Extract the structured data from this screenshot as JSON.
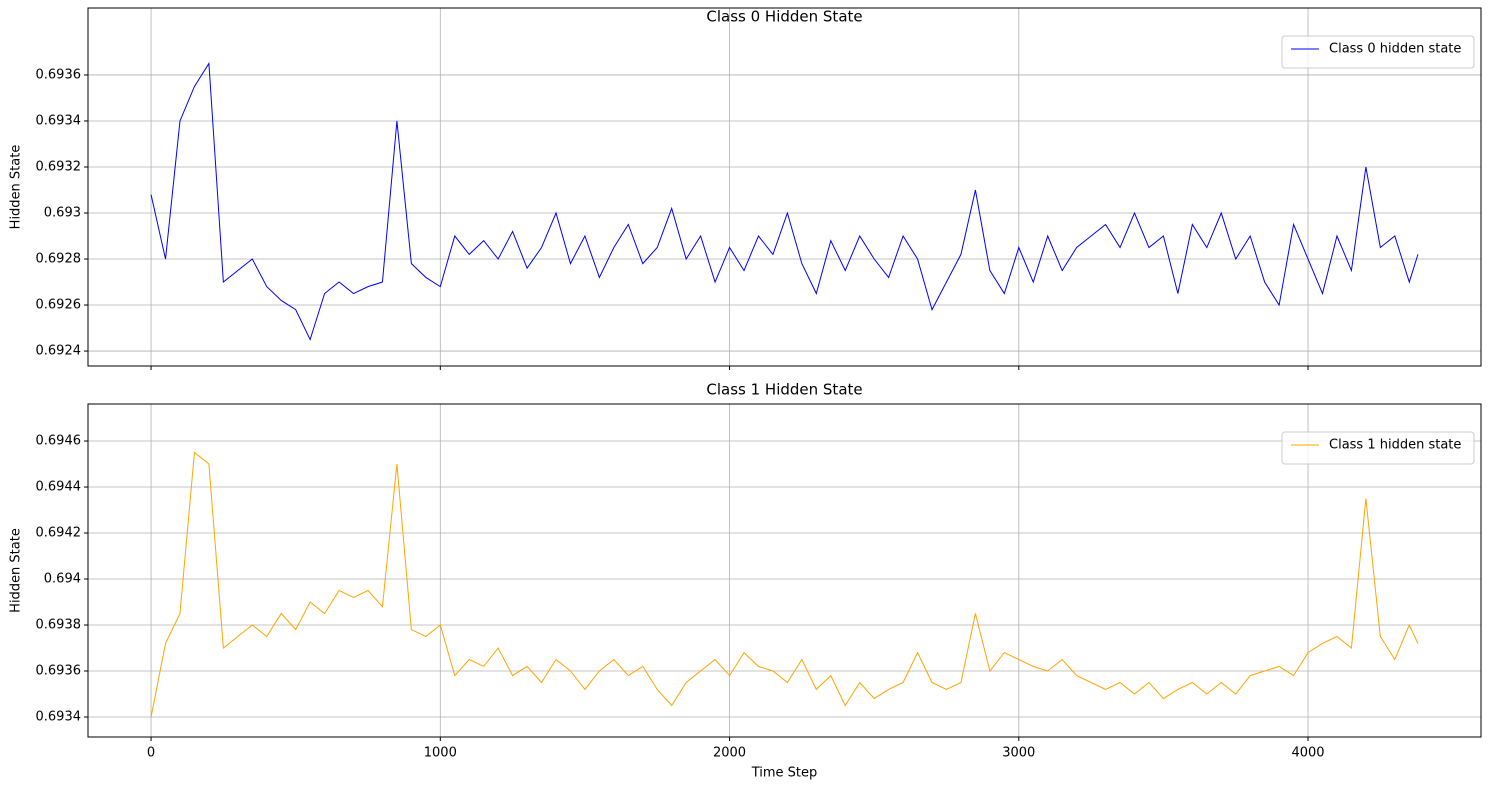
{
  "chart_data": [
    {
      "type": "line",
      "title": "Class 0 Hidden State",
      "ylabel": "Hidden State",
      "x": [
        0,
        50,
        100,
        150,
        200,
        250,
        300,
        350,
        400,
        450,
        500,
        550,
        600,
        650,
        700,
        750,
        800,
        850,
        900,
        950,
        1000,
        1050,
        1100,
        1150,
        1200,
        1250,
        1300,
        1350,
        1400,
        1450,
        1500,
        1550,
        1600,
        1650,
        1700,
        1750,
        1800,
        1850,
        1900,
        1950,
        2000,
        2050,
        2100,
        2150,
        2200,
        2250,
        2300,
        2350,
        2400,
        2450,
        2500,
        2550,
        2600,
        2650,
        2700,
        2750,
        2800,
        2850,
        2900,
        2950,
        3000,
        3050,
        3100,
        3150,
        3200,
        3250,
        3300,
        3350,
        3400,
        3450,
        3500,
        3550,
        3600,
        3650,
        3700,
        3750,
        3800,
        3850,
        3900,
        3950,
        4000,
        4050,
        4100,
        4150,
        4200,
        4250,
        4300,
        4350,
        4380
      ],
      "series": [
        {
          "name": "Class 0 hidden state",
          "color": "#0000ff",
          "values": [
            0.69308,
            0.6928,
            0.6934,
            0.69355,
            0.69365,
            0.6927,
            0.69275,
            0.6928,
            0.69268,
            0.69262,
            0.69258,
            0.69245,
            0.69265,
            0.6927,
            0.69265,
            0.69268,
            0.6927,
            0.6934,
            0.69278,
            0.69272,
            0.69268,
            0.6929,
            0.69282,
            0.69288,
            0.6928,
            0.69292,
            0.69276,
            0.69285,
            0.693,
            0.69278,
            0.6929,
            0.69272,
            0.69285,
            0.69295,
            0.69278,
            0.69285,
            0.69302,
            0.6928,
            0.6929,
            0.6927,
            0.69285,
            0.69275,
            0.6929,
            0.69282,
            0.693,
            0.69278,
            0.69265,
            0.69288,
            0.69275,
            0.6929,
            0.6928,
            0.69272,
            0.6929,
            0.6928,
            0.69258,
            0.6927,
            0.69282,
            0.6931,
            0.69275,
            0.69265,
            0.69285,
            0.6927,
            0.6929,
            0.69275,
            0.69285,
            0.6929,
            0.69295,
            0.69285,
            0.693,
            0.69285,
            0.6929,
            0.69265,
            0.69295,
            0.69285,
            0.693,
            0.6928,
            0.6929,
            0.6927,
            0.6926,
            0.69295,
            0.6928,
            0.69265,
            0.6929,
            0.69275,
            0.6932,
            0.69285,
            0.6929,
            0.6927,
            0.69282
          ]
        }
      ],
      "xlim": [
        -218,
        4598
      ],
      "ylim": [
        0.692335,
        0.693891
      ],
      "xticks": [
        0,
        1000,
        2000,
        3000,
        4000
      ],
      "xticklabels": false,
      "yticks": [
        0.6924,
        0.6926,
        0.6928,
        0.693,
        0.6932,
        0.6934,
        0.6936
      ],
      "grid": true,
      "legend": "upper right"
    },
    {
      "type": "line",
      "title": "Class 1 Hidden State",
      "ylabel": "Hidden State",
      "xlabel": "Time Step",
      "x": [
        0,
        50,
        100,
        150,
        200,
        250,
        300,
        350,
        400,
        450,
        500,
        550,
        600,
        650,
        700,
        750,
        800,
        850,
        900,
        950,
        1000,
        1050,
        1100,
        1150,
        1200,
        1250,
        1300,
        1350,
        1400,
        1450,
        1500,
        1550,
        1600,
        1650,
        1700,
        1750,
        1800,
        1850,
        1900,
        1950,
        2000,
        2050,
        2100,
        2150,
        2200,
        2250,
        2300,
        2350,
        2400,
        2450,
        2500,
        2550,
        2600,
        2650,
        2700,
        2750,
        2800,
        2850,
        2900,
        2950,
        3000,
        3050,
        3100,
        3150,
        3200,
        3250,
        3300,
        3350,
        3400,
        3450,
        3500,
        3550,
        3600,
        3650,
        3700,
        3750,
        3800,
        3850,
        3900,
        3950,
        4000,
        4050,
        4100,
        4150,
        4200,
        4250,
        4300,
        4350,
        4380
      ],
      "series": [
        {
          "name": "Class 1 hidden state",
          "color": "#ffa500",
          "values": [
            0.6934,
            0.69372,
            0.69385,
            0.69455,
            0.6945,
            0.6937,
            0.69375,
            0.6938,
            0.69375,
            0.69385,
            0.69378,
            0.6939,
            0.69385,
            0.69395,
            0.69392,
            0.69395,
            0.69388,
            0.6945,
            0.69378,
            0.69375,
            0.6938,
            0.69358,
            0.69365,
            0.69362,
            0.6937,
            0.69358,
            0.69362,
            0.69355,
            0.69365,
            0.6936,
            0.69352,
            0.6936,
            0.69365,
            0.69358,
            0.69362,
            0.69352,
            0.69345,
            0.69355,
            0.6936,
            0.69365,
            0.69358,
            0.69368,
            0.69362,
            0.6936,
            0.69355,
            0.69365,
            0.69352,
            0.69358,
            0.69345,
            0.69355,
            0.69348,
            0.69352,
            0.69355,
            0.69368,
            0.69355,
            0.69352,
            0.69355,
            0.69385,
            0.6936,
            0.69368,
            0.69365,
            0.69362,
            0.6936,
            0.69365,
            0.69358,
            0.69355,
            0.69352,
            0.69355,
            0.6935,
            0.69355,
            0.69348,
            0.69352,
            0.69355,
            0.6935,
            0.69355,
            0.6935,
            0.69358,
            0.6936,
            0.69362,
            0.69358,
            0.69368,
            0.69372,
            0.69375,
            0.6937,
            0.69435,
            0.69375,
            0.69365,
            0.6938,
            0.69372
          ]
        }
      ],
      "xlim": [
        -218,
        4598
      ],
      "ylim": [
        0.693313,
        0.694761
      ],
      "xticks": [
        0,
        1000,
        2000,
        3000,
        4000
      ],
      "xticklabels": true,
      "yticks": [
        0.6934,
        0.6936,
        0.6938,
        0.694,
        0.6942,
        0.6944,
        0.6946
      ],
      "grid": true,
      "legend": "upper right"
    }
  ]
}
